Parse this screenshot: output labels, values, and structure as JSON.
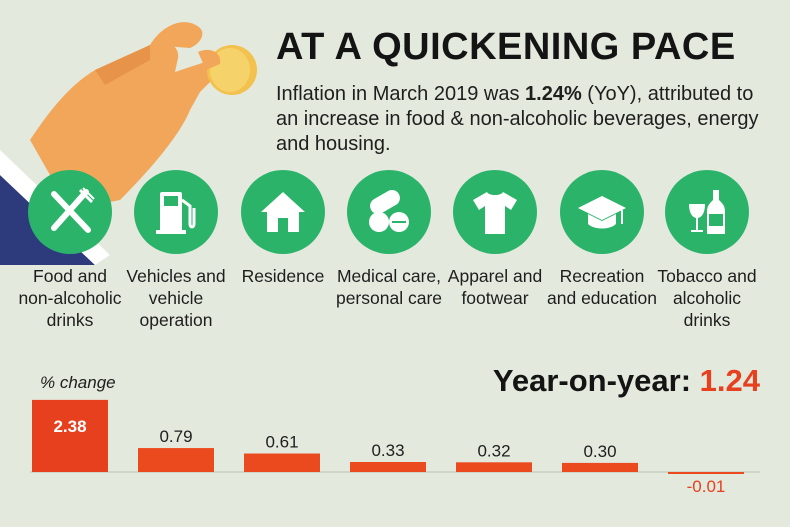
{
  "header": {
    "title": "AT A QUICKENING PACE",
    "subtitle_pre": "Inflation in March 2019 was ",
    "subtitle_bold": "1.24%",
    "subtitle_post": " (YoY), attributed to an increase in food & non-alcoholic beverages, energy and housing."
  },
  "categories": [
    {
      "name": "Food and non-alcoholic drinks",
      "icon": "fork-knife-icon"
    },
    {
      "name": "Vehicles and vehicle operation",
      "icon": "fuel-pump-icon"
    },
    {
      "name": "Residence",
      "icon": "house-icon"
    },
    {
      "name": "Medical care, personal care",
      "icon": "pills-icon"
    },
    {
      "name": "Apparel and footwear",
      "icon": "tshirt-icon"
    },
    {
      "name": "Recreation and education",
      "icon": "graduation-cap-icon"
    },
    {
      "name": "Tobacco and alcoholic drinks",
      "icon": "wine-bottle-icon"
    }
  ],
  "summary": {
    "label": "Year-on-year:",
    "value": "1.24"
  },
  "colors": {
    "accent": "#e6401f",
    "icon_circle": "#2cb36a",
    "background": "#e3e9dd",
    "bar_highlight": "#e6401f",
    "bar": "#ea4a1d"
  },
  "chart_data": {
    "type": "bar",
    "ylabel": "% change",
    "categories": [
      "Food and non-alcoholic drinks",
      "Vehicles and vehicle operation",
      "Residence",
      "Medical care, personal care",
      "Apparel and footwear",
      "Recreation and education",
      "Tobacco and alcoholic drinks"
    ],
    "values": [
      2.38,
      0.79,
      0.61,
      0.33,
      0.32,
      0.3,
      -0.01
    ],
    "value_labels": [
      "2.38",
      "0.79",
      "0.61",
      "0.33",
      "0.32",
      "0.30",
      "-0.01"
    ],
    "ylim": [
      -0.1,
      2.6
    ],
    "grid": false,
    "legend": "none"
  }
}
